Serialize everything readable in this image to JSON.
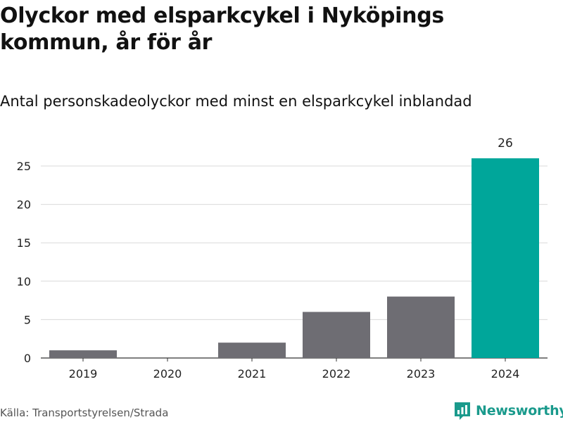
{
  "title": "Olyckor med elsparkcykel i Nyköpings kommun, år för år",
  "subtitle": "Antal personskadeolyckor med minst en elsparkcykel inblandad",
  "source": "Källa: Transportstyrelsen/Strada",
  "brand": "Newsworthy",
  "colors": {
    "bar": "#6e6d73",
    "highlight": "#00a69a",
    "grid": "#d9d9d9",
    "brand": "#1a9a8c"
  },
  "chart_data": {
    "type": "bar",
    "categories": [
      "2019",
      "2020",
      "2021",
      "2022",
      "2023",
      "2024"
    ],
    "values": [
      1,
      0,
      2,
      6,
      8,
      26
    ],
    "highlight_index": 5,
    "data_labels": {
      "5": "26"
    },
    "yticks": [
      0,
      5,
      10,
      15,
      20,
      25
    ],
    "ylim": [
      0,
      27
    ],
    "grid": true,
    "xlabel": "",
    "ylabel": ""
  }
}
